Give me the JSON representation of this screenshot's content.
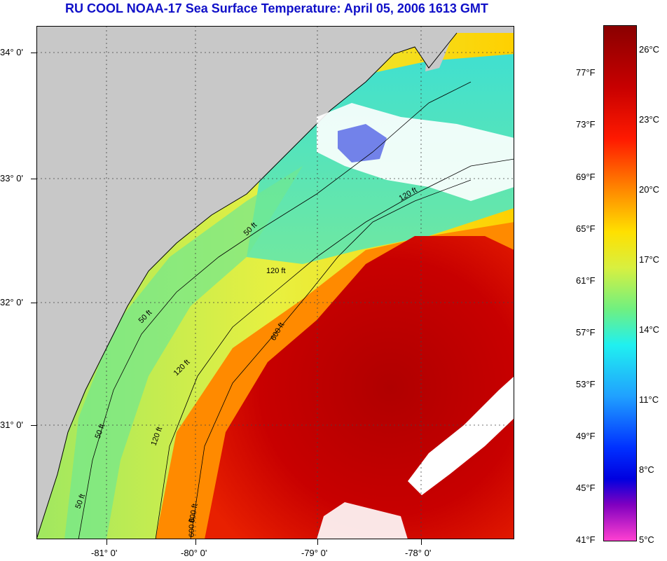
{
  "title": "RU COOL  NOAA-17  Sea Surface Temperature:  April 05, 2006 1613 GMT",
  "map": {
    "lat_labels": [
      "34° 0'",
      "33° 0'",
      "32° 0'",
      "31° 0'"
    ],
    "lon_labels": [
      "-81° 0'",
      "-80° 0'",
      "-79° 0'",
      "-78° 0'"
    ],
    "isobath_labels": [
      "50 ft",
      "50 ft",
      "50 ft",
      "50 ft",
      "120 ft",
      "120 ft",
      "120 ft",
      "120 ft",
      "600 ft",
      "600 ft",
      "600 ft"
    ],
    "colors": {
      "land": "#c8c8c8",
      "cloud": "#ffffff",
      "gulf_stream": "#c80000",
      "shelf": "#c8e64a",
      "cold": "#30d8c0"
    }
  },
  "colorbar": {
    "fahrenheit_labels": [
      "77°F",
      "73°F",
      "69°F",
      "65°F",
      "61°F",
      "57°F",
      "53°F",
      "49°F",
      "45°F",
      "41°F"
    ],
    "celsius_labels": [
      "26°C",
      "23°C",
      "20°C",
      "17°C",
      "14°C",
      "11°C",
      "8°C",
      "5°C"
    ]
  }
}
